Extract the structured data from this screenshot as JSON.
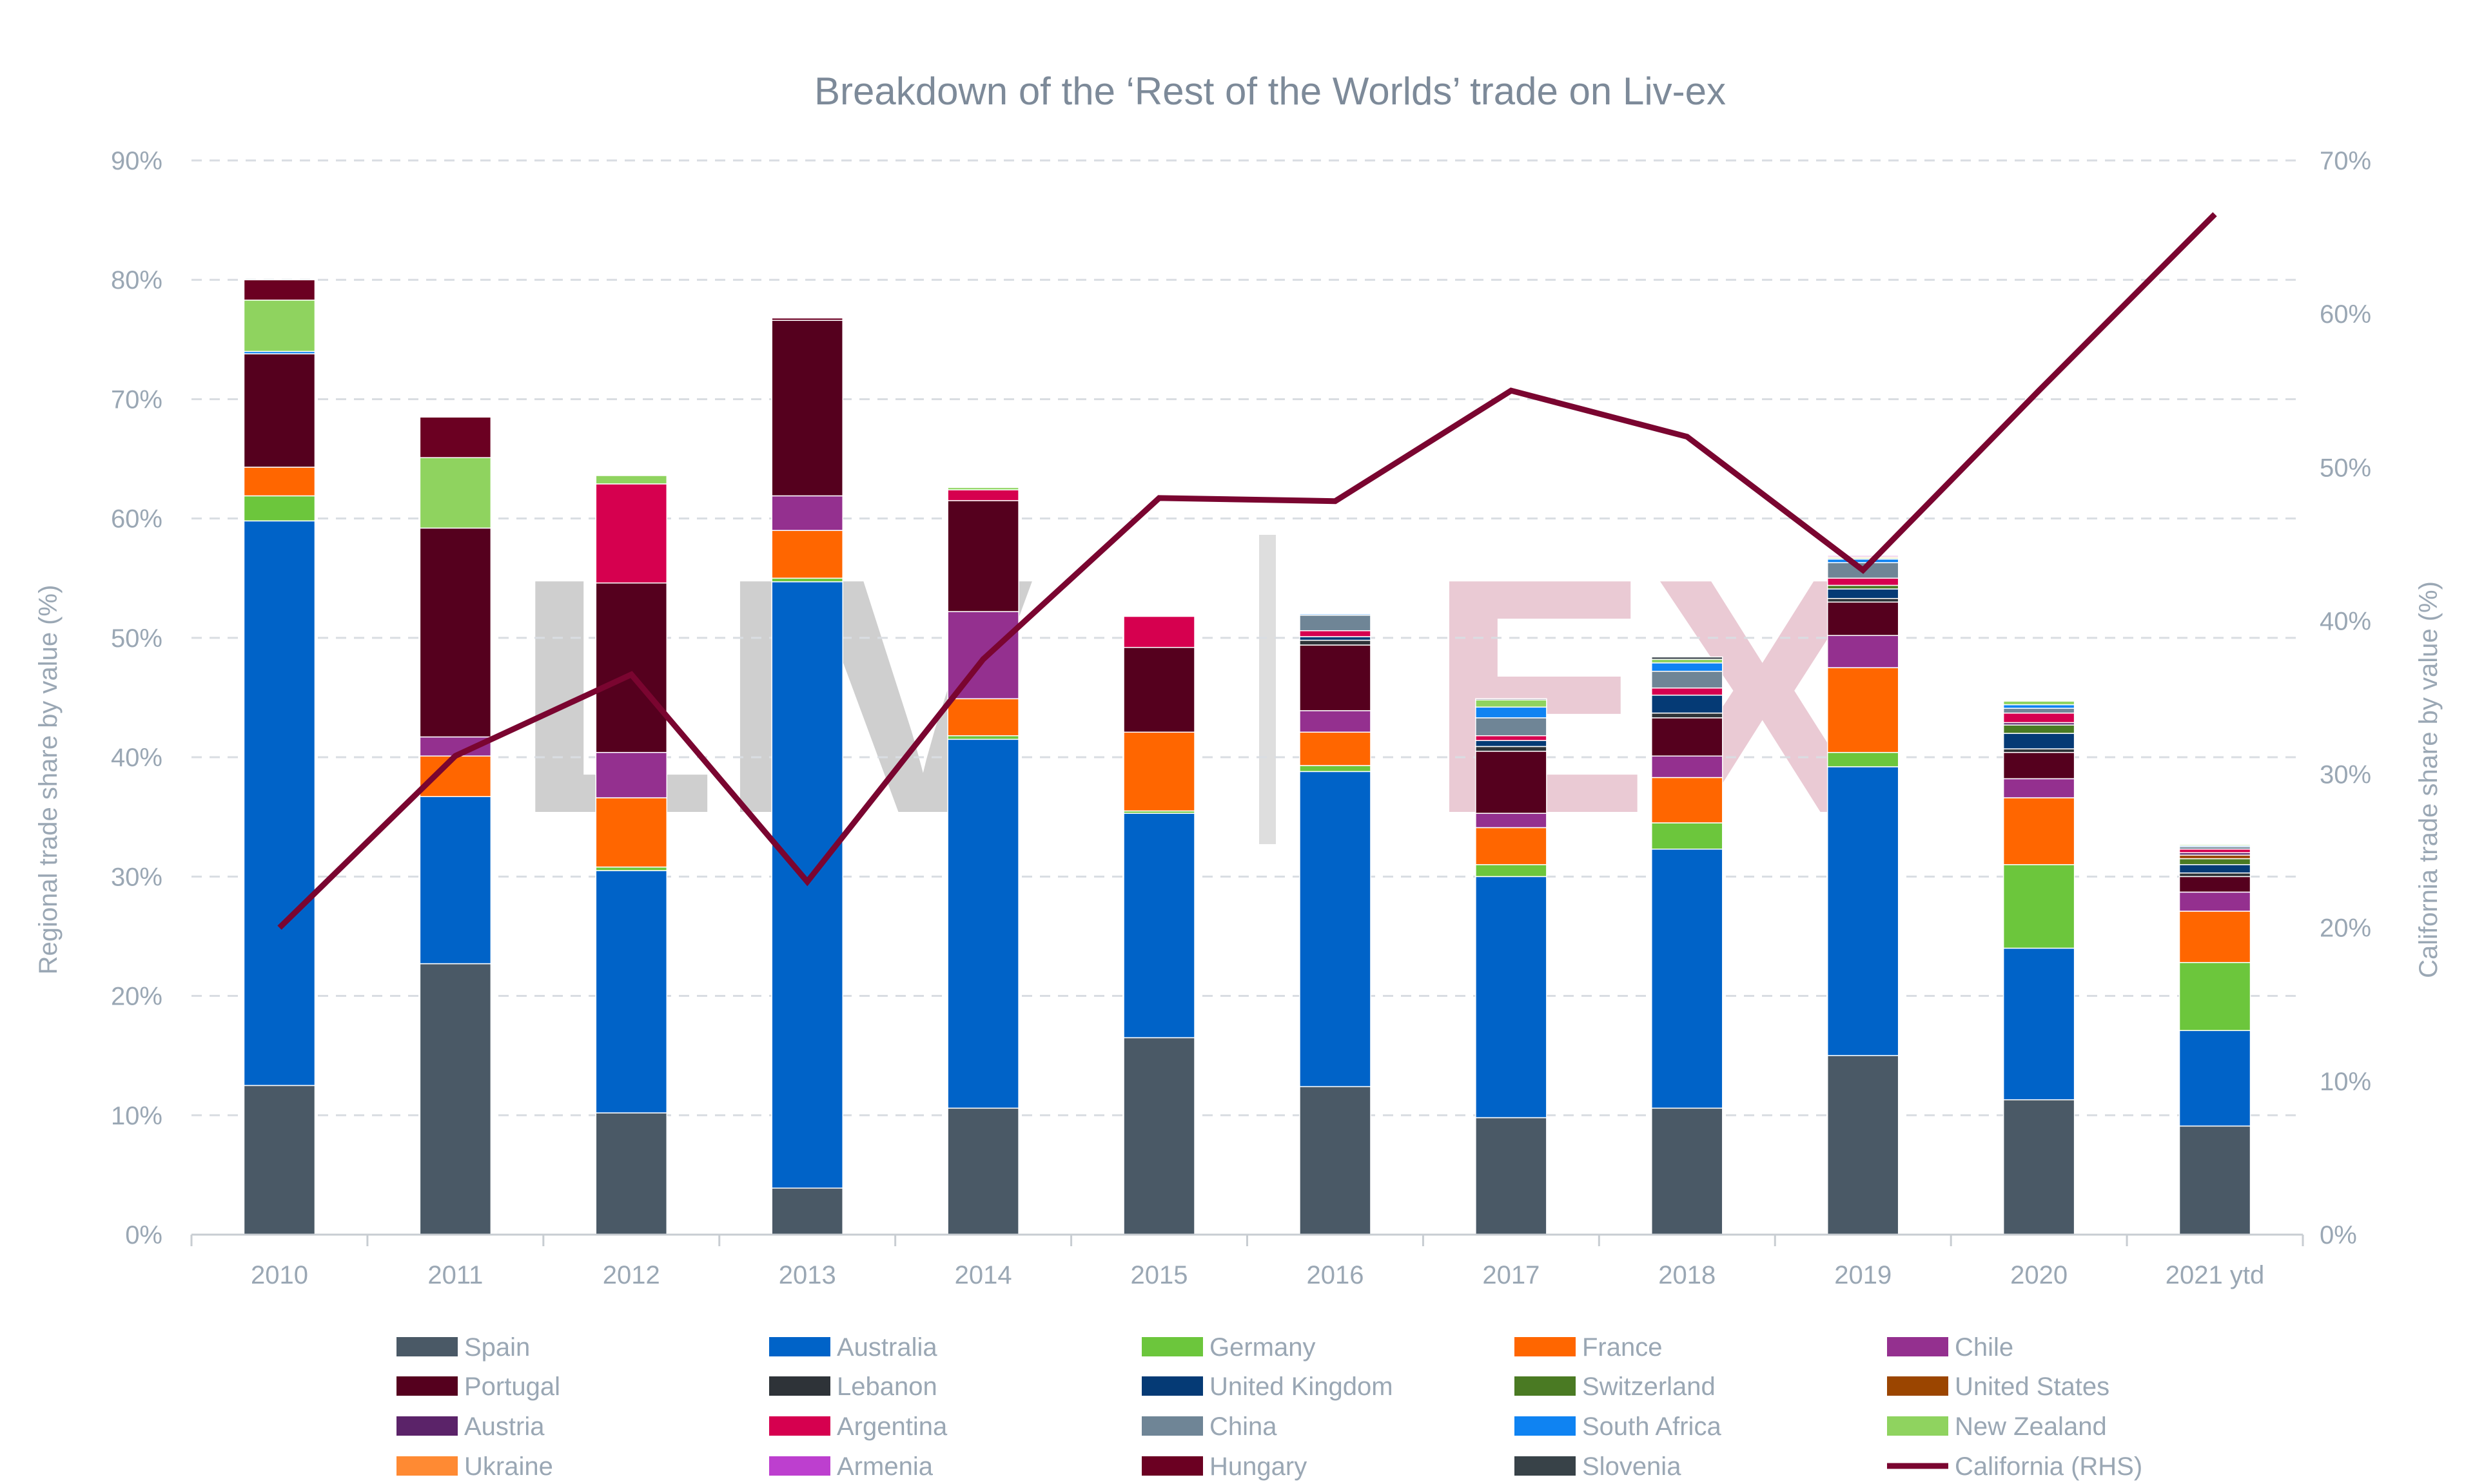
{
  "chart_data": {
    "type": "bar",
    "stacked": true,
    "title": "Breakdown of the ‘Rest of the Worlds’ trade on Liv-ex",
    "ylabel": "Regional trade share by value (%)",
    "y2label": "California trade share by value (%)",
    "ylim": [
      0,
      90
    ],
    "y2lim": [
      0,
      70
    ],
    "yticks": [
      "0%",
      "10%",
      "20%",
      "30%",
      "40%",
      "50%",
      "60%",
      "70%",
      "80%",
      "90%"
    ],
    "y2ticks": [
      "0%",
      "10%",
      "20%",
      "30%",
      "40%",
      "50%",
      "60%",
      "70%"
    ],
    "grid": true,
    "legend_position": "bottom",
    "categories": [
      "2010",
      "2011",
      "2012",
      "2013",
      "2014",
      "2015",
      "2016",
      "2017",
      "2018",
      "2019",
      "2020",
      "2021 ytd"
    ],
    "watermark": "LIV|EX",
    "series": [
      {
        "name": "Spain",
        "color": "#4a5966",
        "values": [
          12.5,
          22.7,
          10.2,
          3.9,
          10.6,
          16.5,
          12.4,
          9.8,
          10.6,
          15.0,
          11.3,
          9.1
        ]
      },
      {
        "name": "Australia",
        "color": "#0063c8",
        "values": [
          47.3,
          14.0,
          20.3,
          50.8,
          30.9,
          18.8,
          26.4,
          20.2,
          21.7,
          24.2,
          12.7,
          8.0
        ]
      },
      {
        "name": "Germany",
        "color": "#6cc63c",
        "values": [
          2.1,
          0,
          0.3,
          0.3,
          0.3,
          0.2,
          0.5,
          1.0,
          2.2,
          1.2,
          7.0,
          5.7
        ]
      },
      {
        "name": "France",
        "color": "#ff6600",
        "values": [
          2.4,
          3.4,
          5.8,
          4.0,
          3.1,
          6.6,
          2.8,
          3.1,
          3.8,
          7.1,
          5.6,
          4.3
        ]
      },
      {
        "name": "Chile",
        "color": "#94308f",
        "values": [
          0,
          1.6,
          3.8,
          2.9,
          7.3,
          0,
          1.8,
          1.2,
          1.8,
          2.7,
          1.6,
          1.6
        ]
      },
      {
        "name": "Portugal",
        "color": "#55001e",
        "values": [
          9.5,
          17.5,
          14.2,
          14.7,
          9.3,
          7.1,
          5.5,
          5.2,
          3.2,
          2.8,
          2.2,
          1.3
        ]
      },
      {
        "name": "Lebanon",
        "color": "#2e3338",
        "values": [
          0,
          0,
          0,
          0,
          0,
          0,
          0.4,
          0.4,
          0.4,
          0.3,
          0.3,
          0.3
        ]
      },
      {
        "name": "United Kingdom",
        "color": "#053a75",
        "values": [
          0,
          0,
          0,
          0,
          0,
          0,
          0.3,
          0.5,
          1.5,
          0.8,
          1.3,
          0.7
        ]
      },
      {
        "name": "Switzerland",
        "color": "#4a7a23",
        "values": [
          0,
          0,
          0,
          0,
          0,
          0,
          0,
          0,
          0,
          0.3,
          0.7,
          0.5
        ]
      },
      {
        "name": "United States",
        "color": "#9b4500",
        "values": [
          0,
          0,
          0,
          0,
          0,
          0,
          0,
          0,
          0,
          0,
          0,
          0.3
        ]
      },
      {
        "name": "Austria",
        "color": "#5b2369",
        "values": [
          0,
          0,
          0,
          0,
          0,
          0,
          0,
          0,
          0,
          0,
          0.2,
          0.2
        ]
      },
      {
        "name": "Argentina",
        "color": "#d6004f",
        "values": [
          0,
          0,
          8.3,
          0,
          0.9,
          2.6,
          0.5,
          0.4,
          0.6,
          0.6,
          0.8,
          0.3
        ]
      },
      {
        "name": "China",
        "color": "#6f8596",
        "values": [
          0,
          0,
          0,
          0,
          0,
          0,
          1.3,
          1.5,
          1.4,
          1.3,
          0.4,
          0.2
        ]
      },
      {
        "name": "South Africa",
        "color": "#0f83f2",
        "values": [
          0.2,
          0,
          0,
          0,
          0,
          0,
          0.1,
          0.9,
          0.7,
          0.3,
          0.3,
          0.1
        ]
      },
      {
        "name": "New Zealand",
        "color": "#8fd35f",
        "values": [
          4.3,
          5.9,
          0.7,
          0,
          0.2,
          0,
          0,
          0.6,
          0.3,
          0.1,
          0.3,
          0.1
        ]
      },
      {
        "name": "Ukraine",
        "color": "#ff8a33",
        "values": [
          0,
          0,
          0,
          0,
          0,
          0,
          0,
          0,
          0,
          0.1,
          0,
          0
        ]
      },
      {
        "name": "Armenia",
        "color": "#bd3fcf",
        "values": [
          0,
          0,
          0,
          0,
          0,
          0,
          0,
          0,
          0,
          0.1,
          0,
          0
        ]
      },
      {
        "name": "Hungary",
        "color": "#6b0022",
        "values": [
          1.7,
          3.4,
          0,
          0.2,
          0,
          0,
          0,
          0,
          0,
          0,
          0,
          0
        ]
      },
      {
        "name": "Slovenia",
        "color": "#384248",
        "values": [
          0,
          0,
          0,
          0,
          0,
          0,
          0,
          0.1,
          0.2,
          0,
          0,
          0
        ]
      }
    ],
    "line_series": {
      "name": "California (RHS)",
      "color": "#7a0530",
      "axis": "right",
      "values": [
        20.0,
        31.2,
        36.5,
        23.0,
        37.5,
        48.0,
        47.8,
        55.0,
        52.0,
        43.3,
        55.0,
        66.5
      ]
    }
  }
}
